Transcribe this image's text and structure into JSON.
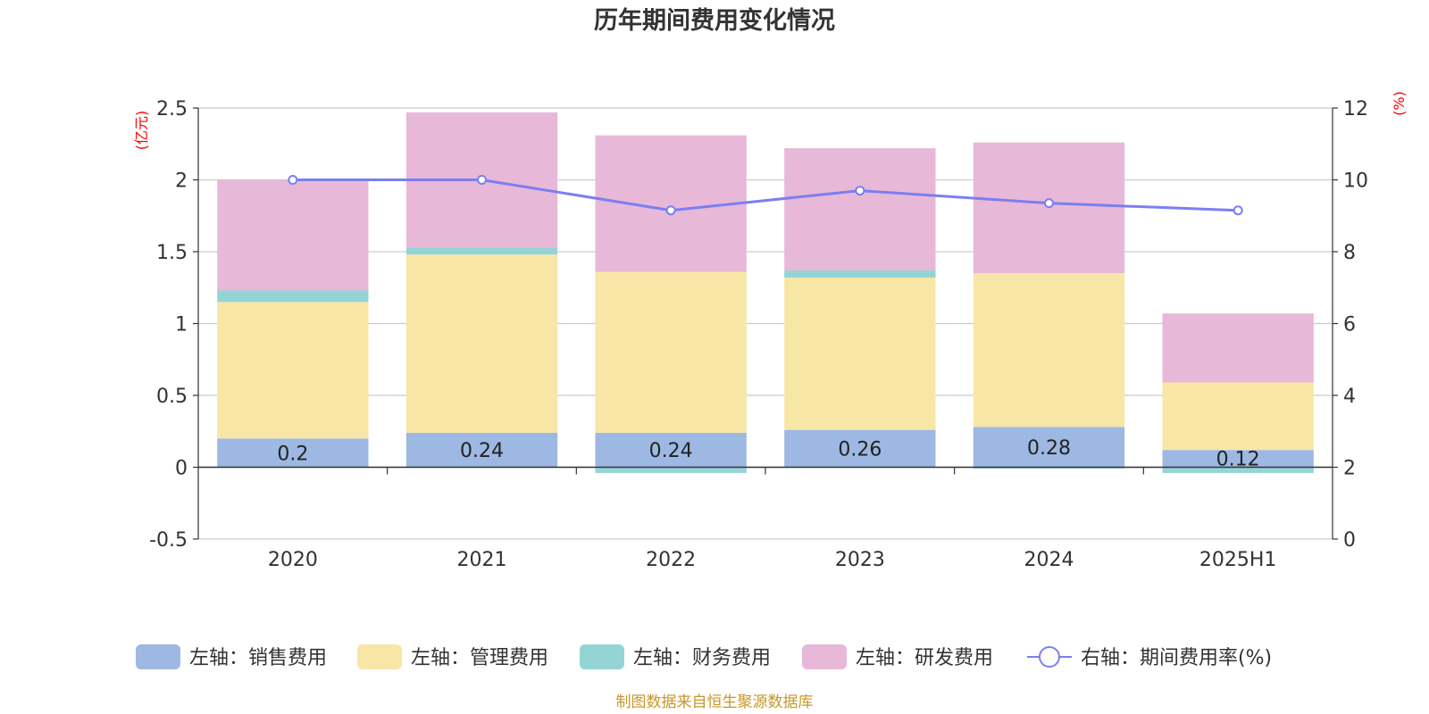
{
  "chart_data": {
    "type": "bar",
    "title": "历年期间费用变化情况",
    "categories": [
      "2020",
      "2021",
      "2022",
      "2023",
      "2024",
      "2025H1"
    ],
    "stacked": true,
    "series": [
      {
        "name": "左轴：销售费用",
        "axis": "left",
        "type": "bar",
        "color": "#9db8e2",
        "values": [
          0.2,
          0.24,
          0.24,
          0.26,
          0.28,
          0.12
        ],
        "labels": [
          "0.2",
          "0.24",
          "0.24",
          "0.26",
          "0.28",
          "0.12"
        ]
      },
      {
        "name": "左轴：管理费用",
        "axis": "left",
        "type": "bar",
        "color": "#f8e6a6",
        "values": [
          0.95,
          1.24,
          1.12,
          1.06,
          1.07,
          0.47
        ]
      },
      {
        "name": "左轴：财务费用",
        "axis": "left",
        "type": "bar",
        "color": "#95d4d4",
        "values": [
          0.08,
          0.05,
          -0.04,
          0.05,
          -0.01,
          -0.04
        ]
      },
      {
        "name": "左轴：研发费用",
        "axis": "left",
        "type": "bar",
        "color": "#e8b8d8",
        "values": [
          0.77,
          0.94,
          0.95,
          0.85,
          0.91,
          0.48
        ]
      },
      {
        "name": "右轴：期间费用率(%)",
        "axis": "right",
        "type": "line",
        "color": "#7b7ff0",
        "values": [
          10.0,
          10.0,
          9.15,
          9.7,
          9.35,
          9.15
        ]
      }
    ],
    "y_left": {
      "unit": "(亿元)",
      "min": -0.5,
      "max": 2.5,
      "ticks": [
        -0.5,
        0,
        0.5,
        1,
        1.5,
        2,
        2.5
      ],
      "tick_labels": [
        "-0.5",
        "0",
        "0.5",
        "1",
        "1.5",
        "2",
        "2.5"
      ]
    },
    "y_right": {
      "unit": "(%)",
      "min": 0,
      "max": 12,
      "ticks": [
        0,
        2,
        4,
        6,
        8,
        10,
        12
      ],
      "tick_labels": [
        "0",
        "2",
        "4",
        "6",
        "8",
        "10",
        "12"
      ]
    },
    "grid": true,
    "legend_position": "bottom",
    "source": "制图数据来自恒生聚源数据库"
  }
}
